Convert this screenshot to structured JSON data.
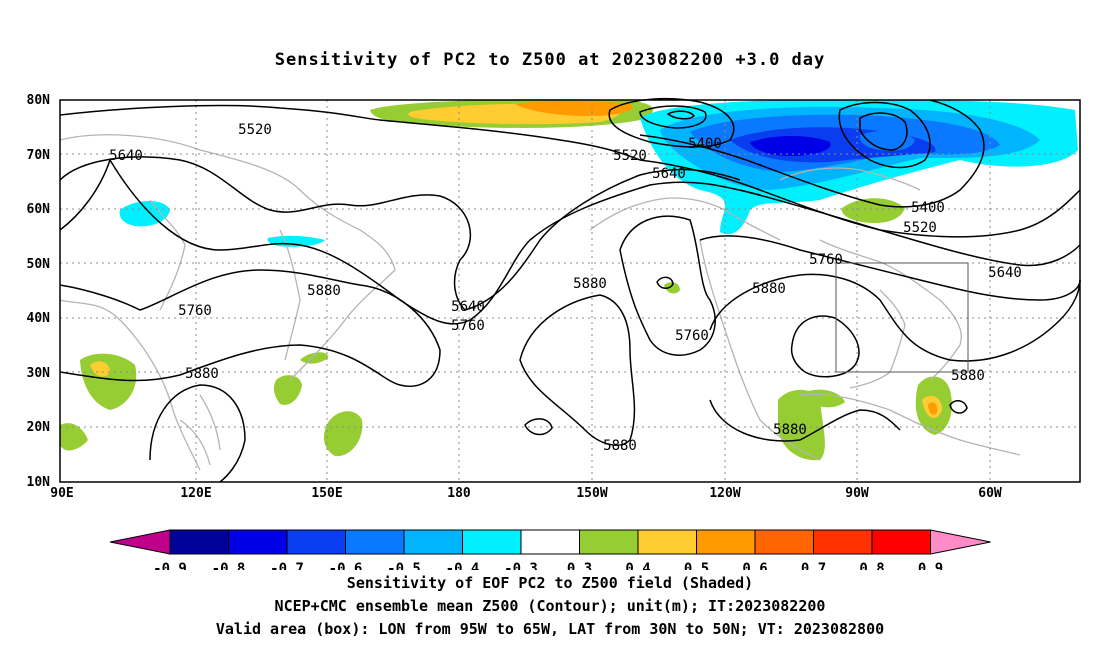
{
  "title": "Sensitivity of PC2 to Z500 at 2023082200 +3.0 day",
  "map": {
    "lat_labels": [
      "80N",
      "70N",
      "60N",
      "50N",
      "40N",
      "30N",
      "20N",
      "10N"
    ],
    "lon_labels": [
      "90E",
      "120E",
      "150E",
      "180",
      "150W",
      "120W",
      "90W",
      "60W"
    ],
    "contour_labels": [
      "5520",
      "5640",
      "5520",
      "5400",
      "5640",
      "5400",
      "5520",
      "5760",
      "5640",
      "5880",
      "5760",
      "5880",
      "5640",
      "5760",
      "5880",
      "5760",
      "5880",
      "5880",
      "5880",
      "5880"
    ],
    "valid_box": {
      "lon_west": -95,
      "lon_east": -65,
      "lat_south": 30,
      "lat_north": 50
    }
  },
  "colorbar": {
    "labels": [
      "-0.9",
      "-0.8",
      "-0.7",
      "-0.6",
      "-0.5",
      "-0.4",
      "-0.3",
      "0.3",
      "0.4",
      "0.5",
      "0.6",
      "0.7",
      "0.8",
      "0.9"
    ],
    "colors": [
      "#c0008c",
      "#00009a",
      "#0000e6",
      "#0a3cf0",
      "#0a78ff",
      "#00b4ff",
      "#00f0ff",
      "#ffffff",
      "#96cd32",
      "#ffcd32",
      "#ff9b00",
      "#ff6400",
      "#ff3200",
      "#ff0000",
      "#ff8cc8"
    ]
  },
  "captions": [
    "Sensitivity of EOF PC2 to Z500 field (Shaded)",
    "NCEP+CMC ensemble mean Z500 (Contour); unit(m); IT:2023082200",
    "Valid area (box): LON from 95W to 65W, LAT from 30N to 50N; VT: 2023082800"
  ],
  "colors": {
    "coast": "#b4b4b4",
    "contour": "#000000",
    "grid": "#8c8c8c"
  }
}
